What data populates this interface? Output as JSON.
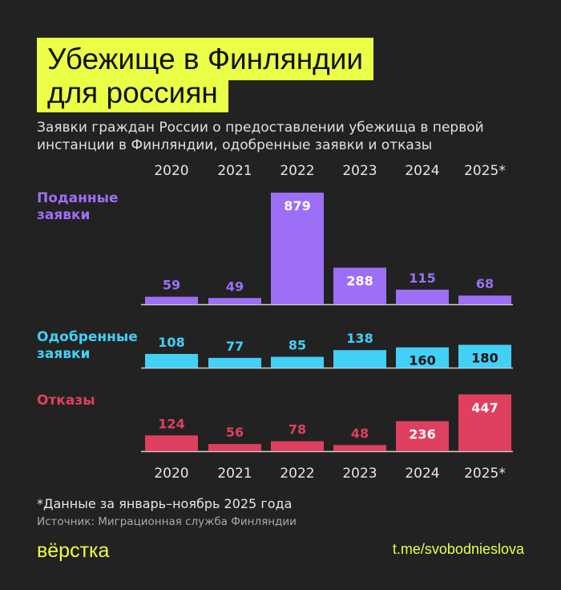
{
  "title_line1": "Убежище в Финляндии",
  "title_line2": "для россиян",
  "subtitle": "Заявки граждан России о предоставлении убежища в первой инстанции в Финляндии, одобренные заявки и отказы",
  "note": "*Данные за январь–ноябрь 2025 года",
  "source": "Источник: Миграционная служба Финляндии",
  "logo": "вёрстка",
  "link": "t.me/svobodnieslova",
  "chart_data": {
    "type": "bar",
    "categories": [
      "2020",
      "2021",
      "2022",
      "2023",
      "2024",
      "2025*"
    ],
    "series": [
      {
        "name": "Поданные заявки",
        "color": "#9d6ff7",
        "values": [
          59,
          49,
          879,
          288,
          115,
          68
        ]
      },
      {
        "name": "Одобренные заявки",
        "color": "#42d0f7",
        "values": [
          108,
          77,
          85,
          138,
          160,
          180
        ]
      },
      {
        "name": "Отказы",
        "color": "#e0405f",
        "values": [
          124,
          56,
          78,
          48,
          236,
          447
        ]
      }
    ],
    "grid": false
  }
}
